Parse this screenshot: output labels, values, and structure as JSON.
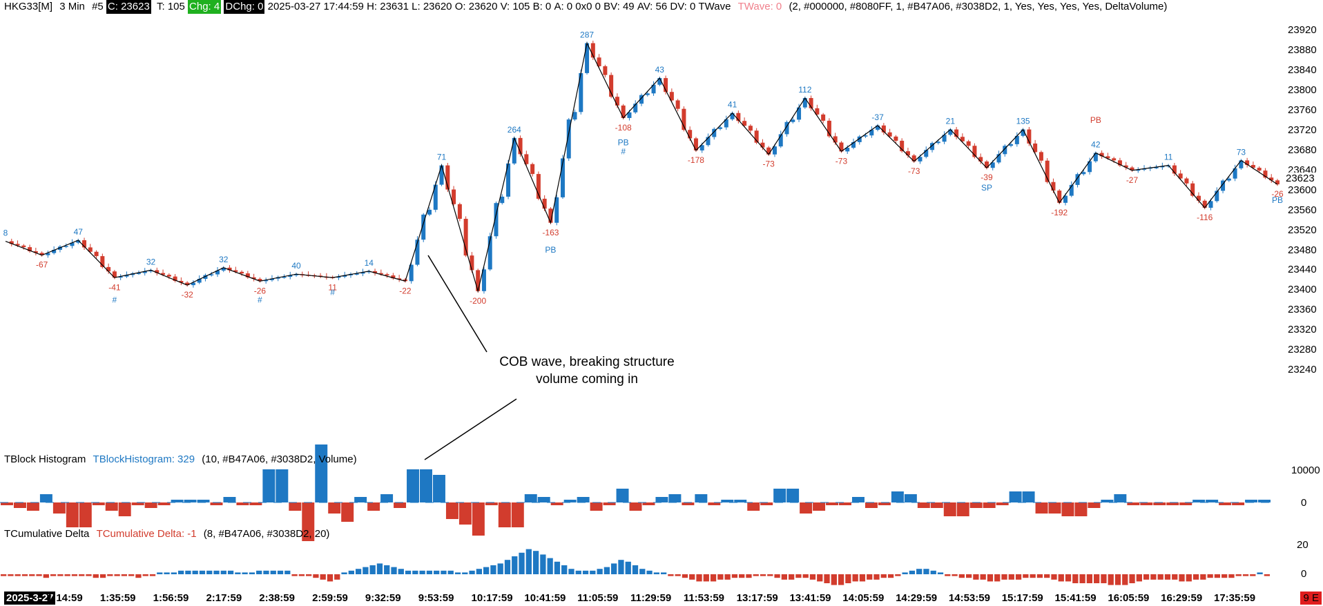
{
  "header": {
    "symbol": "HKG33[M]",
    "interval": "3 Min",
    "chart_no": "#5",
    "close": "C: 23623",
    "ticks": "T: 105",
    "chg": "Chg: 4",
    "dchg": "DChg: 0",
    "datetime": "2025-03-27 17:44:59",
    "high": "H: 23631",
    "low": "L: 23620",
    "open": "O: 23620",
    "volume": "V: 105",
    "bid": "B: 0",
    "ask": "A: 0",
    "bidask": "0x0",
    "bv": "0",
    "bvv": "BV: 49",
    "av": "AV: 56",
    "dv": "DV: 0",
    "study": "TWave",
    "study_value": "TWave: 0",
    "study_params": "(2, #000000, #8080FF, 1, #B47A06, #3038D2, 1, Yes, Yes, Yes, Yes, DeltaVolume)"
  },
  "colors": {
    "up": "#1e78c3",
    "down": "#d23c2d",
    "wave": "#000000"
  },
  "price_axis": {
    "ticks": [
      "23920",
      "23880",
      "23840",
      "23800",
      "23760",
      "23720",
      "23680",
      "23640",
      "23600",
      "23560",
      "23520",
      "23480",
      "23440",
      "23400",
      "23360",
      "23320",
      "23280",
      "23240"
    ],
    "current": "23623"
  },
  "annotation": {
    "line1": "COB wave, breaking structure",
    "line2": "volume coming in"
  },
  "histogram": {
    "title": "TBlock Histogram",
    "value": "TBlockHistogram: 329",
    "params": "(10, #B47A06, #3038D2, Volume)",
    "ticks": [
      "10000",
      "0"
    ]
  },
  "cumdelta": {
    "title": "TCumulative Delta",
    "value": "TCumulative Delta: -1",
    "params": "(8, #B47A06, #3038D2, 20)",
    "ticks": [
      "20",
      "0"
    ]
  },
  "time_axis": {
    "date": "2025-3-27",
    "labels": [
      "1:14:59",
      "1:35:59",
      "1:56:59",
      "2:17:59",
      "2:38:59",
      "2:59:59",
      "9:32:59",
      "9:53:59",
      "10:17:59",
      "10:41:59",
      "11:05:59",
      "11:29:59",
      "11:53:59",
      "13:17:59",
      "13:41:59",
      "14:05:59",
      "14:29:59",
      "14:53:59",
      "15:17:59",
      "15:41:59",
      "16:05:59",
      "16:29:59",
      "17:35:59"
    ],
    "badge": "9 E"
  },
  "chart_data": {
    "type": "candlestick",
    "y_range": [
      23240,
      23940
    ],
    "wave_points": [
      {
        "p": 23498,
        "label": "8",
        "dir": "up"
      },
      {
        "p": 23470,
        "label": "-67",
        "dir": "down"
      },
      {
        "p": 23500,
        "label": "47",
        "dir": "up"
      },
      {
        "p": 23425,
        "label": "-41",
        "dir": "down"
      },
      {
        "p": 23440,
        "label": "32",
        "dir": "up"
      },
      {
        "p": 23410,
        "label": "-32",
        "dir": "down"
      },
      {
        "p": 23445,
        "label": "32",
        "dir": "up"
      },
      {
        "p": 23418,
        "label": "-26",
        "dir": "down"
      },
      {
        "p": 23432,
        "label": "40",
        "dir": "up"
      },
      {
        "p": 23425,
        "label": "11",
        "dir": "down"
      },
      {
        "p": 23438,
        "label": "14",
        "dir": "up"
      },
      {
        "p": 23418,
        "label": "-22",
        "dir": "down"
      },
      {
        "p": 23650,
        "label": "71",
        "dir": "up"
      },
      {
        "p": 23398,
        "label": "-200",
        "dir": "down"
      },
      {
        "p": 23705,
        "label": "264",
        "dir": "up"
      },
      {
        "p": 23535,
        "label": "-163",
        "dir": "down"
      },
      {
        "p": 23895,
        "label": "287",
        "dir": "up"
      },
      {
        "p": 23745,
        "label": "-108",
        "dir": "down"
      },
      {
        "p": 23825,
        "label": "43",
        "dir": "up"
      },
      {
        "p": 23680,
        "label": "-178",
        "dir": "down"
      },
      {
        "p": 23755,
        "label": "41",
        "dir": "up"
      },
      {
        "p": 23672,
        "label": "-73",
        "dir": "down"
      },
      {
        "p": 23785,
        "label": "112",
        "dir": "up"
      },
      {
        "p": 23678,
        "label": "-73",
        "dir": "down"
      },
      {
        "p": 23730,
        "label": "-37",
        "dir": "up"
      },
      {
        "p": 23658,
        "label": "-73",
        "dir": "down"
      },
      {
        "p": 23722,
        "label": "21",
        "dir": "up"
      },
      {
        "p": 23645,
        "label": "-39",
        "dir": "down"
      },
      {
        "p": 23722,
        "label": "135",
        "dir": "up"
      },
      {
        "p": 23575,
        "label": "-192",
        "dir": "down"
      },
      {
        "p": 23675,
        "label": "42",
        "dir": "up"
      },
      {
        "p": 23640,
        "label": "-27",
        "dir": "down"
      },
      {
        "p": 23650,
        "label": "11",
        "dir": "up"
      },
      {
        "p": 23565,
        "label": "-116",
        "dir": "down"
      },
      {
        "p": 23660,
        "label": "73",
        "dir": "up"
      },
      {
        "p": 23612,
        "label": "-26",
        "dir": "down"
      }
    ],
    "markers": [
      {
        "text": "#",
        "p": 23375,
        "at": 3
      },
      {
        "text": "#",
        "p": 23375,
        "at": 7
      },
      {
        "text": "#",
        "p": 23390,
        "at": 9
      },
      {
        "text": "PB",
        "p": 23475,
        "at": 15
      },
      {
        "text": "PB",
        "p": 23690,
        "at": 17
      },
      {
        "text": "#",
        "p": 23672,
        "at": 17
      },
      {
        "text": "SP",
        "p": 23600,
        "at": 27
      },
      {
        "text": "PB",
        "p": 23735,
        "at": 30
      },
      {
        "text": "PB",
        "p": 23575,
        "at": 35
      }
    ],
    "histogram_values": [
      -1,
      -2,
      -3,
      3,
      -4,
      -9,
      -9,
      -1,
      -3,
      -5,
      -1,
      -2,
      -1,
      1,
      1,
      1,
      -1,
      2,
      -1,
      -1,
      12,
      12,
      -3,
      -14,
      21,
      -4,
      -7,
      2,
      -3,
      3,
      -2,
      12,
      12,
      10,
      -6,
      -8,
      -12,
      -1,
      -9,
      -9,
      3,
      2,
      -1,
      1,
      2,
      -3,
      -1,
      5,
      -3,
      -1,
      2,
      3,
      -1,
      3,
      -1,
      1,
      1,
      -3,
      -1,
      5,
      5,
      -4,
      -3,
      -1,
      -1,
      2,
      -2,
      -1,
      4,
      3,
      -2,
      -2,
      -5,
      -5,
      -2,
      -2,
      -1,
      4,
      4,
      -4,
      -4,
      -5,
      -5,
      -2,
      1,
      3,
      -1,
      -1,
      -1,
      -1,
      -1,
      1,
      1,
      -1,
      -1,
      1,
      1
    ],
    "cumdelta_values": [
      -1,
      -1,
      -1,
      -1,
      -1,
      -1,
      -2,
      -1,
      -1,
      -1,
      -1,
      -1,
      -1,
      -2,
      -2,
      -1,
      -1,
      -1,
      -1,
      -2,
      -1,
      -1,
      1,
      1,
      1,
      2,
      2,
      2,
      2,
      2,
      2,
      2,
      2,
      1,
      1,
      1,
      2,
      2,
      2,
      2,
      2,
      -1,
      -1,
      -1,
      -2,
      -3,
      -4,
      -3,
      1,
      2,
      3,
      4,
      5,
      6,
      5,
      4,
      3,
      2,
      2,
      2,
      2,
      2,
      2,
      2,
      1,
      1,
      2,
      3,
      4,
      5,
      6,
      8,
      10,
      12,
      14,
      13,
      11,
      9,
      7,
      5,
      3,
      2,
      2,
      2,
      3,
      4,
      6,
      8,
      7,
      5,
      3,
      2,
      1,
      1,
      -1,
      -1,
      -2,
      -3,
      -4,
      -4,
      -4,
      -3,
      -3,
      -2,
      -2,
      -2,
      -1,
      -1,
      -1,
      -2,
      -3,
      -3,
      -2,
      -2,
      -3,
      -4,
      -5,
      -6,
      -6,
      -5,
      -4,
      -4,
      -3,
      -3,
      -2,
      -2,
      -1,
      1,
      2,
      3,
      3,
      2,
      1,
      -1,
      -1,
      -2,
      -2,
      -3,
      -3,
      -4,
      -4,
      -3,
      -3,
      -3,
      -2,
      -2,
      -2,
      -2,
      -3,
      -4,
      -4,
      -5,
      -5,
      -5,
      -5,
      -5,
      -6,
      -6,
      -6,
      -5,
      -4,
      -3,
      -3,
      -3,
      -3,
      -3,
      -4,
      -4,
      -3,
      -3,
      -2,
      -2,
      -2,
      -2,
      -1,
      -1,
      -1,
      1,
      -1
    ]
  }
}
